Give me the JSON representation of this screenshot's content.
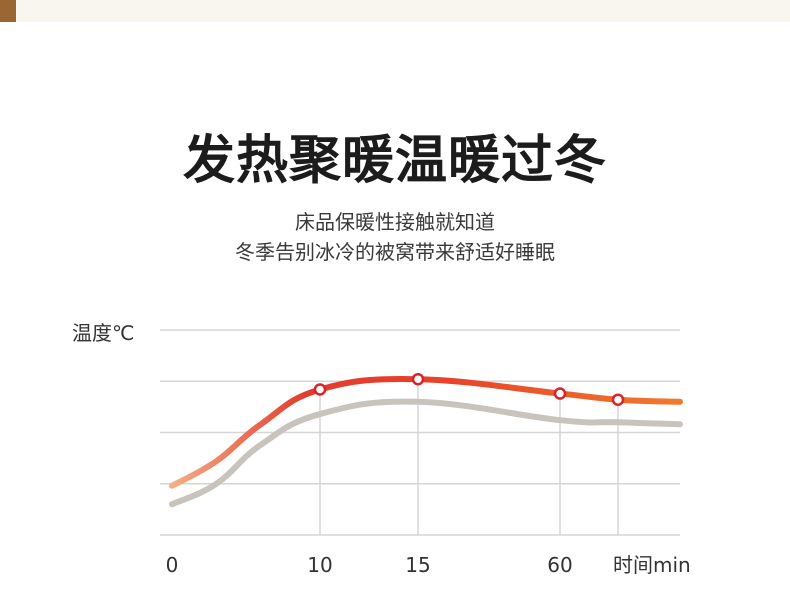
{
  "headline": "发热聚暖温暖过冬",
  "subtitle": {
    "line1": "床品保暖性接触就知道",
    "line2": "冬季告别冰冷的被窝带来舒适好睡眠"
  },
  "colors": {
    "top_band": "#f8f6ef",
    "corner_tab": "#9a6634",
    "grid": "#d6d6d6",
    "warm_start": "#f4b98c",
    "warm_mid": "#e23c2e",
    "warm_end": "#f07a2c",
    "cool_series": "#c9c3bd",
    "marker_stroke": "#d8242a"
  },
  "chart_data": {
    "type": "line",
    "ylabel": "温度℃",
    "xlabel": "时间min",
    "tick_labels": [
      "0",
      "10",
      "15",
      "60"
    ],
    "marked_points": [
      {
        "x": "10",
        "y": 0.71
      },
      {
        "x": "15",
        "y": 0.76
      },
      {
        "x": "60",
        "y": 0.69
      },
      {
        "x": "",
        "y": 0.66
      }
    ],
    "series": [
      {
        "curve": [
          {
            "x": 0,
            "y": 0.24
          },
          {
            "x": 3,
            "y": 0.36
          },
          {
            "x": 6,
            "y": 0.54
          },
          {
            "x": 10,
            "y": 0.71
          },
          {
            "x": 15,
            "y": 0.76
          },
          {
            "x": 60,
            "y": 0.69
          },
          {
            "x": 75,
            "y": 0.66
          },
          {
            "x": 90,
            "y": 0.65
          }
        ]
      },
      {
        "curve": [
          {
            "x": 0,
            "y": 0.15
          },
          {
            "x": 3,
            "y": 0.25
          },
          {
            "x": 6,
            "y": 0.44
          },
          {
            "x": 10,
            "y": 0.59
          },
          {
            "x": 15,
            "y": 0.65
          },
          {
            "x": 60,
            "y": 0.56
          },
          {
            "x": 75,
            "y": 0.55
          },
          {
            "x": 90,
            "y": 0.54
          }
        ]
      }
    ],
    "ylim": [
      0,
      1
    ],
    "grid": true
  }
}
